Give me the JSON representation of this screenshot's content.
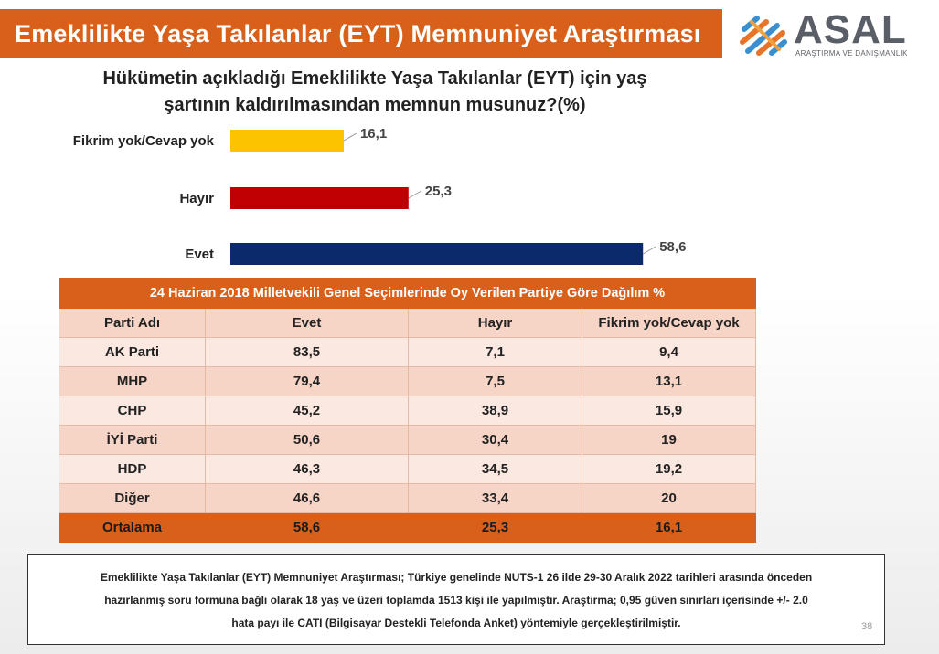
{
  "header": {
    "title": "Emeklilikte Yaşa Takılanlar (EYT) Memnuniyet Araştırması"
  },
  "logo": {
    "name": "ASAL",
    "subtitle": "ARAŞTIRMA VE DANIŞMANLIK"
  },
  "question": {
    "line1": "Hükümetin açıkladığı Emeklilikte Yaşa Takılanlar (EYT)  için yaş",
    "line2": "şartının kaldırılmasından memnun musunuz?(%)"
  },
  "chart_data": {
    "type": "bar",
    "orientation": "horizontal",
    "categories": [
      "Fikrim yok/Cevap yok",
      "Hayır",
      "Evet"
    ],
    "values": [
      16.1,
      25.3,
      58.6
    ],
    "value_labels": [
      "16,1",
      "25,3",
      "58,6"
    ],
    "colors": [
      "#fcc300",
      "#c00000",
      "#0b2a6b"
    ],
    "title": "",
    "xlabel": "",
    "ylabel": "",
    "grid": false
  },
  "table": {
    "caption": "24 Haziran 2018 Milletvekili Genel Seçimlerinde Oy Verilen Partiye Göre Dağılım %",
    "columns": [
      "Parti Adı",
      "Evet",
      "Hayır",
      "Fikrim yok/Cevap yok"
    ],
    "rows": [
      [
        "AK Parti",
        "83,5",
        "7,1",
        "9,4"
      ],
      [
        "MHP",
        "79,4",
        "7,5",
        "13,1"
      ],
      [
        "CHP",
        "45,2",
        "38,9",
        "15,9"
      ],
      [
        "İYİ Parti",
        "50,6",
        "30,4",
        "19"
      ],
      [
        "HDP",
        "46,3",
        "34,5",
        "19,2"
      ],
      [
        "Diğer",
        "46,6",
        "33,4",
        "20"
      ]
    ],
    "average": [
      "Ortalama",
      "58,6",
      "25,3",
      "16,1"
    ]
  },
  "note": {
    "line1": "Emeklilikte Yaşa Takılanlar (EYT) Memnuniyet Araştırması; Türkiye genelinde NUTS-1 26 ilde 29-30 Aralık 2022 tarihleri arasında önceden",
    "line2": "hazırlanmış soru formuna bağlı olarak 18 yaş ve üzeri toplamda 1513 kişi ile yapılmıştır. Araştırma; 0,95 güven sınırları içerisinde +/- 2.0",
    "line3": "hata payı ile CATI (Bilgisayar Destekli Telefonda Anket) yöntemiyle gerçekleştirilmiştir."
  },
  "page_number": "38"
}
